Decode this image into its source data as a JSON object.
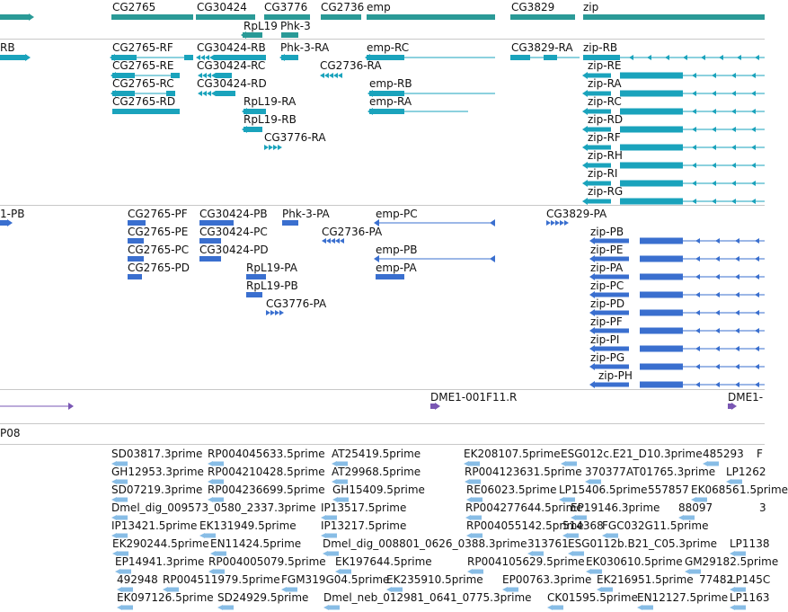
{
  "colors": {
    "gene": "#2a9a97",
    "transcript": "#1aa3bc",
    "cds": "#3a6fcf",
    "clone": "#7a57b4",
    "est": "#88bde6",
    "separator": "#c8c8c8"
  },
  "tracks": {
    "genes": {
      "labels": [
        "CG2765",
        "CG30424",
        "CG3776",
        "CG2736",
        "emp",
        "CG3829",
        "zip",
        "RpL19",
        "Phk-3"
      ]
    },
    "transcripts": {
      "labels": [
        "RB",
        "CG2765-RF",
        "CG30424-RB",
        "Phk-3-RA",
        "emp-RC",
        "CG3829-RA",
        "zip-RB",
        "CG2765-RE",
        "CG30424-RC",
        "CG2736-RA",
        "zip-RE",
        "CG2765-RC",
        "CG30424-RD",
        "emp-RB",
        "zip-RA",
        "CG2765-RD",
        "RpL19-RA",
        "emp-RA",
        "zip-RC",
        "RpL19-RB",
        "zip-RD",
        "CG3776-RA",
        "zip-RF",
        "zip-RH",
        "zip-RI",
        "zip-RG"
      ]
    },
    "proteins": {
      "labels": [
        "1-PB",
        "CG2765-PF",
        "CG30424-PB",
        "Phk-3-PA",
        "emp-PC",
        "CG3829-PA",
        "CG2765-PE",
        "CG30424-PC",
        "CG2736-PA",
        "zip-PB",
        "CG2765-PC",
        "CG30424-PD",
        "emp-PB",
        "zip-PE",
        "CG2765-PD",
        "RpL19-PA",
        "emp-PA",
        "zip-PA",
        "RpL19-PB",
        "zip-PC",
        "CG3776-PA",
        "zip-PD",
        "zip-PF",
        "zip-PI",
        "zip-PG",
        "zip-PH"
      ]
    },
    "clones": {
      "labels": [
        "DME1-001F11.R",
        "DME1-"
      ]
    },
    "track_title": "P08",
    "ests": {
      "rows": [
        [
          "SD03817.3prime",
          "RP004045633.5prime",
          "AT25419.5prime",
          "EK208107.5prime",
          "ESG012c.E21_D10.3prime",
          "485293",
          "F"
        ],
        [
          "GH12953.3prime",
          "RP004210428.5prime",
          "AT29968.5prime",
          "RP004123631.5prime",
          "370377",
          "AT01765.3prime",
          "LP1262"
        ],
        [
          "SD07219.3prime",
          "RP004236699.5prime",
          "GH15409.5prime",
          "RE06023.5prime",
          "LP15406.5prime",
          "557857",
          "EK06856",
          "1.5prime"
        ],
        [
          "Dmel_dig_009573_0580_2337.3prime",
          "IP13517.5prime",
          "RP004277644.5prime",
          "EP19146.3prime",
          "88097",
          "3"
        ],
        [
          "IP13421.5prime",
          "EK131949.5prime",
          "IP13217.5prime",
          "RP004055142.5prime",
          "514368",
          "FGC032G11.5prime"
        ],
        [
          "EK290244.5prime",
          "EN11424.5prime",
          "Dmel_dig_008801_0626_0388.3prime",
          "313761",
          "ESG0112b.B21_C05.3prime",
          "LP1138"
        ],
        [
          "EP14941.3prime",
          "RP004005079.5prime",
          "EK197644.5prime",
          "RP004105629.5prime",
          "EK030610.5prime",
          "GM29182.5prime"
        ],
        [
          "492948",
          "RP004511979.5prime",
          "FGM319G04.5prime",
          "EK235910.5prime",
          "EP00763.3prime",
          "EK216951.5prime",
          "77482",
          "LP145C"
        ],
        [
          "EK097126.5prime",
          "SD24929.5prime",
          "Dmel_neb_012981_0641_0775.3prime",
          "CK01595.5prime",
          "EN12127.5prime",
          "LP1163"
        ]
      ]
    }
  }
}
